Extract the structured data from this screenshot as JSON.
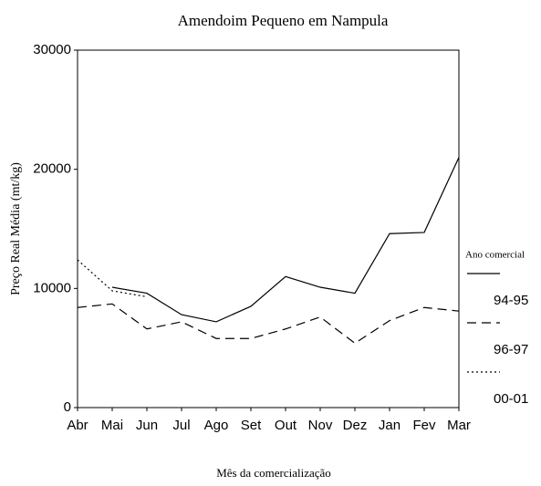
{
  "chart_data": {
    "type": "line",
    "title": "Amendoim Pequeno em Nampula",
    "x_label": "Mês da comercialização",
    "y_label": "Preço Real Média (mt/kg)",
    "legend_title": "Ano comercial",
    "categories": [
      "Abr",
      "Mai",
      "Jun",
      "Jul",
      "Ago",
      "Set",
      "Out",
      "Nov",
      "Dez",
      "Jan",
      "Fev",
      "Mar"
    ],
    "series": [
      {
        "name": "94-95",
        "color": "#000000",
        "dash": "solid",
        "values": [
          null,
          10100,
          9600,
          7800,
          7200,
          8500,
          11000,
          10100,
          9600,
          14600,
          14700,
          21000
        ]
      },
      {
        "name": "96-97",
        "color": "#000000",
        "dash": "dashed",
        "values": [
          8400,
          8700,
          6600,
          7200,
          5800,
          5800,
          6600,
          7600,
          5400,
          7300,
          8400,
          8100
        ]
      },
      {
        "name": "00-01",
        "color": "#000000",
        "dash": "dotted",
        "values": [
          12400,
          9800,
          9300,
          null,
          null,
          null,
          null,
          null,
          null,
          null,
          null,
          null
        ]
      }
    ],
    "ylim": [
      0,
      30000
    ],
    "yticks": [
      0,
      10000,
      20000,
      30000
    ],
    "grid": false
  }
}
